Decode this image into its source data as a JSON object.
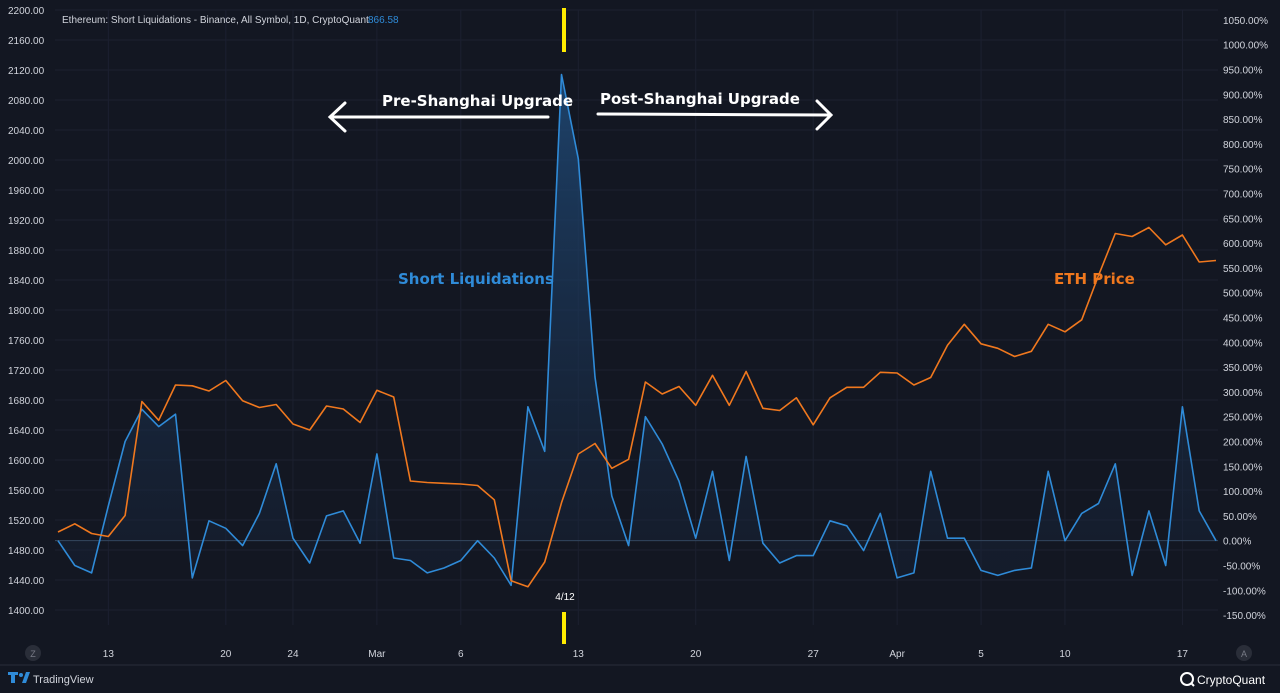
{
  "header": {
    "title": "Ethereum: Short Liquidations - Binance, All Symbol, 1D, CryptoQuant",
    "last_value": "866.58"
  },
  "annotations": {
    "pre": "Pre-Shanghai Upgrade",
    "post": "Post-Shanghai Upgrade",
    "marker_date": "4/12"
  },
  "footer": {
    "left_brand": "TradingView",
    "right_brand": "CryptoQuant",
    "left_button": "Z",
    "right_button": "A"
  },
  "colors": {
    "background": "#131722",
    "liquidations": "#2f8bd8",
    "price": "#f0781e",
    "marker": "#ffeb00",
    "text": "#d1d4dc"
  },
  "chart_data": {
    "type": "line",
    "x_tick_labels": [
      "13",
      "20",
      "24",
      "Mar",
      "6",
      "13",
      "20",
      "27",
      "Apr",
      "5",
      "10",
      "17"
    ],
    "left_axis": {
      "ticks": [
        "2200.00",
        "2160.00",
        "2120.00",
        "2080.00",
        "2040.00",
        "2000.00",
        "1960.00",
        "1920.00",
        "1880.00",
        "1840.00",
        "1800.00",
        "1760.00",
        "1720.00",
        "1680.00",
        "1640.00",
        "1600.00",
        "1560.00",
        "1520.00",
        "1480.00",
        "1440.00",
        "1400.00"
      ],
      "ylim": [
        1380,
        2200
      ]
    },
    "right_axis": {
      "ticks": [
        "1050.00%",
        "1000.00%",
        "950.00%",
        "900.00%",
        "850.00%",
        "800.00%",
        "750.00%",
        "700.00%",
        "650.00%",
        "600.00%",
        "550.00%",
        "500.00%",
        "450.00%",
        "400.00%",
        "350.00%",
        "300.00%",
        "250.00%",
        "200.00%",
        "150.00%",
        "100.00%",
        "50.00%",
        "0.00%",
        "-50.00%",
        "-100.00%",
        "-150.00%"
      ],
      "ylim": [
        -170,
        1070
      ]
    },
    "series": [
      {
        "name": "Short Liquidations",
        "axis": "right",
        "color": "#2f8bd8",
        "values": [
          0,
          -50,
          -65,
          70,
          200,
          265,
          230,
          255,
          -75,
          40,
          25,
          -10,
          55,
          155,
          5,
          -45,
          50,
          60,
          -5,
          175,
          -35,
          -40,
          -65,
          -55,
          -40,
          0,
          -35,
          -90,
          270,
          180,
          940,
          770,
          330,
          90,
          -10,
          250,
          195,
          120,
          5,
          140,
          -40,
          170,
          -5,
          -45,
          -30,
          -30,
          40,
          30,
          -20,
          55,
          -75,
          -65,
          140,
          5,
          5,
          -60,
          -70,
          -60,
          -55,
          140,
          0,
          55,
          75,
          155,
          -70,
          60,
          -50,
          270,
          60,
          0
        ]
      },
      {
        "name": "ETH Price",
        "axis": "left",
        "color": "#f0781e",
        "values": [
          1504,
          1515,
          1502,
          1498,
          1526,
          1678,
          1653,
          1700,
          1699,
          1692,
          1706,
          1679,
          1670,
          1674,
          1648,
          1640,
          1672,
          1668,
          1650,
          1693,
          1684,
          1572,
          1570,
          1569,
          1568,
          1566,
          1547,
          1439,
          1431,
          1464,
          1543,
          1608,
          1622,
          1589,
          1601,
          1704,
          1688,
          1698,
          1673,
          1713,
          1673,
          1718,
          1669,
          1666,
          1683,
          1647,
          1683,
          1697,
          1697,
          1717,
          1716,
          1700,
          1710,
          1753,
          1781,
          1755,
          1749,
          1738,
          1745,
          1781,
          1771,
          1787,
          1846,
          1902,
          1898,
          1910,
          1887,
          1900,
          1864,
          1866
        ]
      }
    ],
    "marker_index": 30
  }
}
